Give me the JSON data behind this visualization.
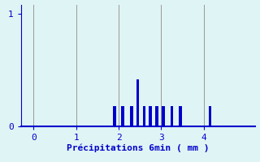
{
  "xlabel": "Précipitations 6min ( mm )",
  "background_color": "#dff4f4",
  "bar_color": "#0000cc",
  "xlim": [
    -0.3,
    5.2
  ],
  "ylim": [
    0,
    1.08
  ],
  "yticks": [
    0,
    1
  ],
  "xticks": [
    0,
    1,
    2,
    3,
    4
  ],
  "bar_positions": [
    1.9,
    2.1,
    2.3,
    2.45,
    2.6,
    2.75,
    2.9,
    3.05,
    3.25,
    3.45,
    4.15
  ],
  "bar_heights": [
    0.18,
    0.18,
    0.18,
    0.42,
    0.18,
    0.18,
    0.18,
    0.18,
    0.18,
    0.18,
    0.18
  ],
  "bar_width": 0.07,
  "grid_color": "#999999",
  "tick_color": "#0000cc",
  "label_color": "#0000cc",
  "font_size": 8,
  "xlabel_fontsize": 8
}
